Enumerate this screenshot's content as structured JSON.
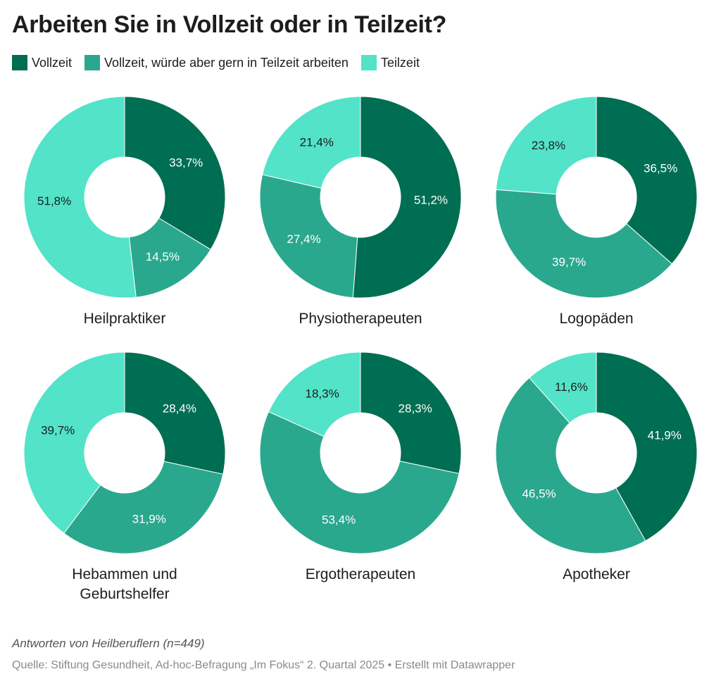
{
  "title": "Arbeiten Sie in Vollzeit oder in Teilzeit?",
  "legend": [
    {
      "label": "Vollzeit",
      "color": "#006e52"
    },
    {
      "label": "Vollzeit, würde aber gern in Teilzeit arbeiten",
      "color": "#2aa88d"
    },
    {
      "label": "Teilzeit",
      "color": "#52e3c8"
    }
  ],
  "chart_data": [
    {
      "type": "pie",
      "title": "Heilpraktiker",
      "categories": [
        "Vollzeit",
        "Vollzeit, würde aber gern in Teilzeit arbeiten",
        "Teilzeit"
      ],
      "values": [
        33.7,
        14.5,
        51.8
      ],
      "labels": [
        "33,7%",
        "14,5%",
        "51,8%"
      ]
    },
    {
      "type": "pie",
      "title": "Physiotherapeuten",
      "categories": [
        "Vollzeit",
        "Vollzeit, würde aber gern in Teilzeit arbeiten",
        "Teilzeit"
      ],
      "values": [
        51.2,
        27.4,
        21.4
      ],
      "labels": [
        "51,2%",
        "27,4%",
        "21,4%"
      ]
    },
    {
      "type": "pie",
      "title": "Logopäden",
      "categories": [
        "Vollzeit",
        "Vollzeit, würde aber gern in Teilzeit arbeiten",
        "Teilzeit"
      ],
      "values": [
        36.5,
        39.7,
        23.8
      ],
      "labels": [
        "36,5%",
        "39,7%",
        "23,8%"
      ]
    },
    {
      "type": "pie",
      "title": "Hebammen und Geburtshelfer",
      "categories": [
        "Vollzeit",
        "Vollzeit, würde aber gern in Teilzeit arbeiten",
        "Teilzeit"
      ],
      "values": [
        28.4,
        31.9,
        39.7
      ],
      "labels": [
        "28,4%",
        "31,9%",
        "39,7%"
      ]
    },
    {
      "type": "pie",
      "title": "Ergotherapeuten",
      "categories": [
        "Vollzeit",
        "Vollzeit, würde aber gern in Teilzeit arbeiten",
        "Teilzeit"
      ],
      "values": [
        28.3,
        53.4,
        18.3
      ],
      "labels": [
        "28,3%",
        "53,4%",
        "18,3%"
      ]
    },
    {
      "type": "pie",
      "title": "Apotheker",
      "categories": [
        "Vollzeit",
        "Vollzeit, würde aber gern in Teilzeit arbeiten",
        "Teilzeit"
      ],
      "values": [
        41.9,
        46.5,
        11.6
      ],
      "labels": [
        "41,9%",
        "46,5%",
        "11,6%"
      ]
    }
  ],
  "label_colors": [
    "#ffffff",
    "#ffffff",
    "#1d1d1d"
  ],
  "notes": "Antworten von Heilberuflern (n=449)",
  "source": "Quelle: Stiftung Gesundheit, Ad-hoc-Befragung „Im Fokus“ 2. Quartal 2025 • Erstellt mit Datawrapper"
}
